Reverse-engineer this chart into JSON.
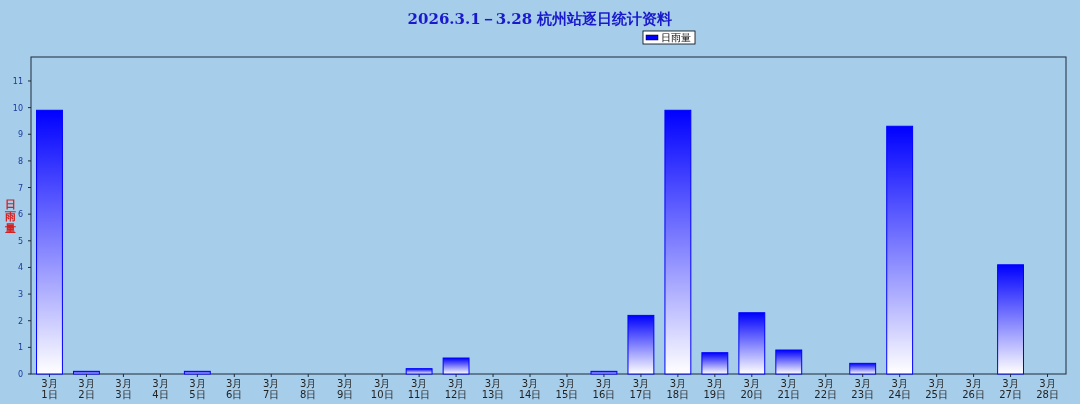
{
  "chart_data": {
    "type": "bar",
    "title": "2026.3.1－3.28 杭州站逐日统计资料",
    "ylabel": "日雨量",
    "categories": [
      "3月\n1日",
      "3月\n2日",
      "3月\n3日",
      "3月\n4日",
      "3月\n5日",
      "3月\n6日",
      "3月\n7日",
      "3月\n8日",
      "3月\n9日",
      "3月\n10日",
      "3月\n11日",
      "3月\n12日",
      "3月\n13日",
      "3月\n14日",
      "3月\n15日",
      "3月\n16日",
      "3月\n17日",
      "3月\n18日",
      "3月\n19日",
      "3月\n20日",
      "3月\n21日",
      "3月\n22日",
      "3月\n23日",
      "3月\n24日",
      "3月\n25日",
      "3月\n26日",
      "3月\n27日",
      "3月\n28日"
    ],
    "series": [
      {
        "name": "日雨量",
        "color": "#0000ff",
        "values": [
          9.9,
          0.1,
          0,
          0,
          0.1,
          0,
          0,
          0,
          0,
          0,
          0.2,
          0.6,
          0,
          0,
          0,
          0.1,
          2.2,
          9.9,
          0.8,
          2.3,
          0.9,
          0,
          0.4,
          9.3,
          0,
          0,
          4.1,
          0
        ]
      }
    ],
    "ylim": [
      0,
      11.9
    ],
    "yticks": [
      0,
      1,
      2,
      3,
      4,
      5,
      6,
      7,
      8,
      9,
      10,
      11
    ],
    "legend": "top",
    "grid": false
  }
}
